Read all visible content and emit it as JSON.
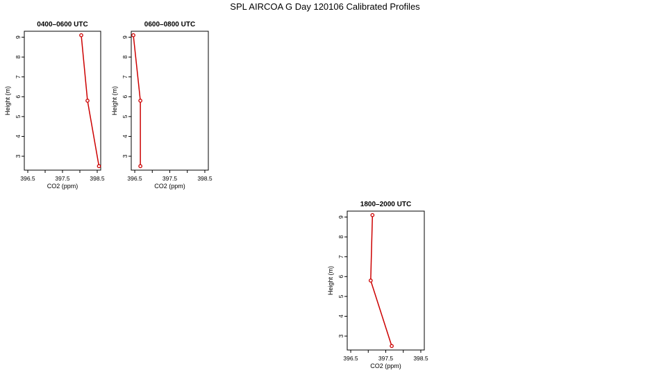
{
  "title": "SPL AIRCOA G  Day 120106  Calibrated Profiles",
  "chart_data": [
    {
      "type": "line",
      "title": "0400–0600 UTC",
      "xlabel": "CO2 (ppm)",
      "ylabel": "Height (m)",
      "xlim": [
        396.4,
        398.6
      ],
      "ylim": [
        2.3,
        9.3
      ],
      "xticks": [
        396.5,
        397.0,
        397.5,
        398.0,
        398.5
      ],
      "xtick_labels": [
        "396.5",
        "",
        "397.5",
        "",
        "398.5"
      ],
      "yticks": [
        3,
        4,
        5,
        6,
        7,
        8,
        9
      ],
      "ytick_labels": [
        "3",
        "4",
        "5",
        "6",
        "7",
        "8",
        "9"
      ],
      "series": [
        {
          "x": [
            398.04,
            398.22,
            398.55
          ],
          "y": [
            9.1,
            5.8,
            2.5
          ],
          "color": "#cc0000"
        }
      ]
    },
    {
      "type": "line",
      "title": "0600–0800 UTC",
      "xlabel": "CO2 (ppm)",
      "ylabel": "Height (m)",
      "xlim": [
        396.4,
        398.6
      ],
      "ylim": [
        2.3,
        9.3
      ],
      "xticks": [
        396.5,
        397.0,
        397.5,
        398.0,
        398.5
      ],
      "xtick_labels": [
        "396.5",
        "",
        "397.5",
        "",
        "398.5"
      ],
      "yticks": [
        3,
        4,
        5,
        6,
        7,
        8,
        9
      ],
      "ytick_labels": [
        "3",
        "4",
        "5",
        "6",
        "7",
        "8",
        "9"
      ],
      "series": [
        {
          "x": [
            396.46,
            396.66,
            396.66
          ],
          "y": [
            9.1,
            5.8,
            2.5
          ],
          "color": "#cc0000"
        }
      ]
    },
    {
      "type": "line",
      "title": "1800–2000 UTC",
      "xlabel": "CO2 (ppm)",
      "ylabel": "Height (m)",
      "xlim": [
        396.4,
        398.6
      ],
      "ylim": [
        2.3,
        9.3
      ],
      "xticks": [
        396.5,
        397.0,
        397.5,
        398.0,
        398.5
      ],
      "xtick_labels": [
        "396.5",
        "",
        "397.5",
        "",
        "398.5"
      ],
      "yticks": [
        3,
        4,
        5,
        6,
        7,
        8,
        9
      ],
      "ytick_labels": [
        "3",
        "4",
        "5",
        "6",
        "7",
        "8",
        "9"
      ],
      "series": [
        {
          "x": [
            397.12,
            397.07,
            397.67
          ],
          "y": [
            9.1,
            5.8,
            2.5
          ],
          "color": "#cc0000"
        }
      ]
    }
  ]
}
